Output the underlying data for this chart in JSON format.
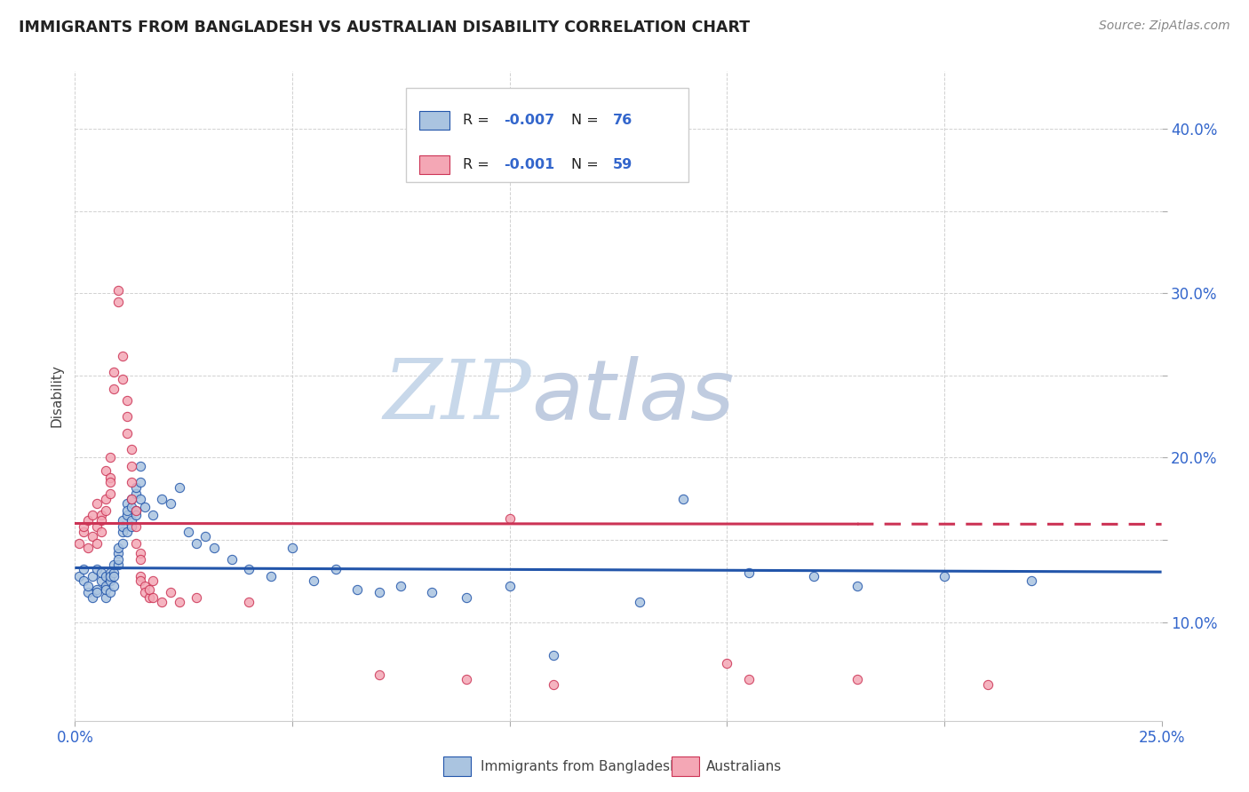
{
  "title": "IMMIGRANTS FROM BANGLADESH VS AUSTRALIAN DISABILITY CORRELATION CHART",
  "source": "Source: ZipAtlas.com",
  "ylabel": "Disability",
  "y_ticks": [
    0.1,
    0.15,
    0.2,
    0.25,
    0.3,
    0.35,
    0.4
  ],
  "y_tick_labels": [
    "10.0%",
    "",
    "20.0%",
    "",
    "30.0%",
    "",
    "40.0%"
  ],
  "x_lim": [
    0.0,
    0.25
  ],
  "y_lim": [
    0.04,
    0.435
  ],
  "legend_r_blue": "R = -0.007",
  "legend_n_blue": "N = 76",
  "legend_r_pink": "R = -0.001",
  "legend_n_pink": "N = 59",
  "legend_label_blue": "Immigrants from Bangladesh",
  "legend_label_pink": "Australians",
  "trendline_blue_slope": -0.01,
  "trendline_blue_intercept": 0.133,
  "trendline_pink_slope": -0.002,
  "trendline_pink_intercept": 0.16,
  "blue_color": "#aac4e0",
  "pink_color": "#f4a7b5",
  "trendline_blue_color": "#2255aa",
  "trendline_pink_color": "#cc3355",
  "watermark_zip_color": "#c8d8ea",
  "watermark_atlas_color": "#c0cce0",
  "background_color": "#ffffff",
  "grid_color": "#cccccc",
  "tick_color": "#3366cc",
  "blue_scatter": [
    [
      0.001,
      0.128
    ],
    [
      0.002,
      0.132
    ],
    [
      0.002,
      0.125
    ],
    [
      0.003,
      0.118
    ],
    [
      0.003,
      0.122
    ],
    [
      0.004,
      0.128
    ],
    [
      0.004,
      0.115
    ],
    [
      0.005,
      0.12
    ],
    [
      0.005,
      0.118
    ],
    [
      0.005,
      0.132
    ],
    [
      0.006,
      0.125
    ],
    [
      0.006,
      0.13
    ],
    [
      0.007,
      0.128
    ],
    [
      0.007,
      0.122
    ],
    [
      0.007,
      0.115
    ],
    [
      0.007,
      0.12
    ],
    [
      0.008,
      0.118
    ],
    [
      0.008,
      0.13
    ],
    [
      0.008,
      0.125
    ],
    [
      0.008,
      0.128
    ],
    [
      0.009,
      0.122
    ],
    [
      0.009,
      0.13
    ],
    [
      0.009,
      0.135
    ],
    [
      0.009,
      0.128
    ],
    [
      0.01,
      0.135
    ],
    [
      0.01,
      0.142
    ],
    [
      0.01,
      0.138
    ],
    [
      0.01,
      0.145
    ],
    [
      0.011,
      0.155
    ],
    [
      0.011,
      0.162
    ],
    [
      0.011,
      0.148
    ],
    [
      0.011,
      0.158
    ],
    [
      0.012,
      0.165
    ],
    [
      0.012,
      0.172
    ],
    [
      0.012,
      0.168
    ],
    [
      0.012,
      0.155
    ],
    [
      0.013,
      0.162
    ],
    [
      0.013,
      0.17
    ],
    [
      0.013,
      0.175
    ],
    [
      0.013,
      0.158
    ],
    [
      0.014,
      0.168
    ],
    [
      0.014,
      0.178
    ],
    [
      0.014,
      0.182
    ],
    [
      0.014,
      0.165
    ],
    [
      0.015,
      0.175
    ],
    [
      0.015,
      0.185
    ],
    [
      0.015,
      0.195
    ],
    [
      0.016,
      0.17
    ],
    [
      0.018,
      0.165
    ],
    [
      0.02,
      0.175
    ],
    [
      0.022,
      0.172
    ],
    [
      0.024,
      0.182
    ],
    [
      0.026,
      0.155
    ],
    [
      0.028,
      0.148
    ],
    [
      0.03,
      0.152
    ],
    [
      0.032,
      0.145
    ],
    [
      0.036,
      0.138
    ],
    [
      0.04,
      0.132
    ],
    [
      0.045,
      0.128
    ],
    [
      0.05,
      0.145
    ],
    [
      0.055,
      0.125
    ],
    [
      0.06,
      0.132
    ],
    [
      0.065,
      0.12
    ],
    [
      0.07,
      0.118
    ],
    [
      0.075,
      0.122
    ],
    [
      0.082,
      0.118
    ],
    [
      0.09,
      0.115
    ],
    [
      0.1,
      0.122
    ],
    [
      0.11,
      0.08
    ],
    [
      0.13,
      0.112
    ],
    [
      0.14,
      0.175
    ],
    [
      0.155,
      0.13
    ],
    [
      0.17,
      0.128
    ],
    [
      0.18,
      0.122
    ],
    [
      0.2,
      0.128
    ],
    [
      0.22,
      0.125
    ]
  ],
  "pink_scatter": [
    [
      0.001,
      0.148
    ],
    [
      0.002,
      0.155
    ],
    [
      0.002,
      0.158
    ],
    [
      0.003,
      0.162
    ],
    [
      0.003,
      0.145
    ],
    [
      0.004,
      0.152
    ],
    [
      0.004,
      0.165
    ],
    [
      0.005,
      0.148
    ],
    [
      0.005,
      0.158
    ],
    [
      0.005,
      0.172
    ],
    [
      0.006,
      0.165
    ],
    [
      0.006,
      0.155
    ],
    [
      0.006,
      0.162
    ],
    [
      0.007,
      0.175
    ],
    [
      0.007,
      0.192
    ],
    [
      0.007,
      0.168
    ],
    [
      0.008,
      0.178
    ],
    [
      0.008,
      0.188
    ],
    [
      0.008,
      0.2
    ],
    [
      0.008,
      0.185
    ],
    [
      0.009,
      0.242
    ],
    [
      0.009,
      0.252
    ],
    [
      0.01,
      0.295
    ],
    [
      0.01,
      0.302
    ],
    [
      0.011,
      0.262
    ],
    [
      0.011,
      0.248
    ],
    [
      0.012,
      0.235
    ],
    [
      0.012,
      0.225
    ],
    [
      0.012,
      0.215
    ],
    [
      0.013,
      0.205
    ],
    [
      0.013,
      0.195
    ],
    [
      0.013,
      0.185
    ],
    [
      0.013,
      0.175
    ],
    [
      0.014,
      0.168
    ],
    [
      0.014,
      0.158
    ],
    [
      0.014,
      0.148
    ],
    [
      0.015,
      0.142
    ],
    [
      0.015,
      0.138
    ],
    [
      0.015,
      0.128
    ],
    [
      0.015,
      0.125
    ],
    [
      0.016,
      0.122
    ],
    [
      0.016,
      0.118
    ],
    [
      0.017,
      0.115
    ],
    [
      0.017,
      0.12
    ],
    [
      0.018,
      0.125
    ],
    [
      0.018,
      0.115
    ],
    [
      0.02,
      0.112
    ],
    [
      0.022,
      0.118
    ],
    [
      0.024,
      0.112
    ],
    [
      0.028,
      0.115
    ],
    [
      0.04,
      0.112
    ],
    [
      0.07,
      0.068
    ],
    [
      0.09,
      0.065
    ],
    [
      0.11,
      0.062
    ],
    [
      0.15,
      0.075
    ],
    [
      0.18,
      0.065
    ],
    [
      0.21,
      0.062
    ],
    [
      0.1,
      0.163
    ],
    [
      0.155,
      0.065
    ]
  ]
}
